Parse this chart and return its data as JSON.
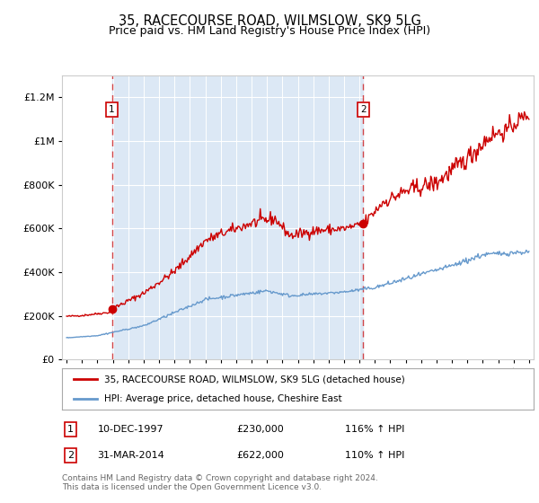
{
  "title": "35, RACECOURSE ROAD, WILMSLOW, SK9 5LG",
  "subtitle": "Price paid vs. HM Land Registry's House Price Index (HPI)",
  "red_label": "35, RACECOURSE ROAD, WILMSLOW, SK9 5LG (detached house)",
  "blue_label": "HPI: Average price, detached house, Cheshire East",
  "annotation1_date": "10-DEC-1997",
  "annotation1_price": "£230,000",
  "annotation1_hpi": "116% ↑ HPI",
  "annotation2_date": "31-MAR-2014",
  "annotation2_price": "£622,000",
  "annotation2_hpi": "110% ↑ HPI",
  "footnote": "Contains HM Land Registry data © Crown copyright and database right 2024.\nThis data is licensed under the Open Government Licence v3.0.",
  "ylim": [
    0,
    1300000
  ],
  "yticks": [
    0,
    200000,
    400000,
    600000,
    800000,
    1000000,
    1200000
  ],
  "ytick_labels": [
    "£0",
    "£200K",
    "£400K",
    "£600K",
    "£800K",
    "£1M",
    "£1.2M"
  ],
  "red_color": "#cc0000",
  "blue_color": "#6699cc",
  "shade_color": "#dce8f5",
  "marker1_x": 1997.94,
  "marker1_y": 230000,
  "marker2_x": 2014.25,
  "marker2_y": 622000,
  "xlim_left": 1994.7,
  "xlim_right": 2025.3
}
